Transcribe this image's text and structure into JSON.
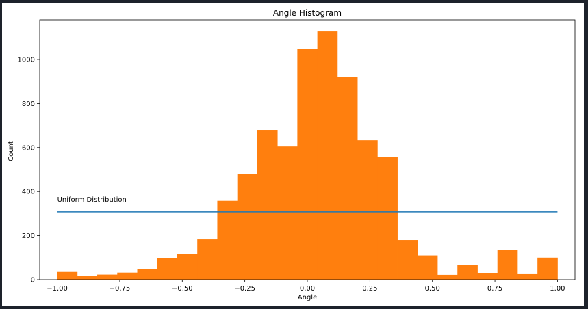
{
  "chart_data": {
    "type": "bar",
    "title": "Angle Histogram",
    "xlabel": "Angle",
    "ylabel": "Count",
    "xlim": [
      -1.07,
      1.07
    ],
    "ylim": [
      0,
      1180
    ],
    "xticks": [
      -1.0,
      -0.75,
      -0.5,
      -0.25,
      0.0,
      0.25,
      0.5,
      0.75,
      1.0
    ],
    "xtick_labels": [
      "−1.00",
      "−0.75",
      "−0.50",
      "−0.25",
      "0.00",
      "0.25",
      "0.50",
      "0.75",
      "1.00"
    ],
    "yticks": [
      0,
      200,
      400,
      600,
      800,
      1000
    ],
    "ytick_labels": [
      "0",
      "200",
      "400",
      "600",
      "800",
      "1000"
    ],
    "bin_edges": [
      -1.0,
      -0.92,
      -0.84,
      -0.76,
      -0.68,
      -0.6,
      -0.52,
      -0.44,
      -0.36,
      -0.28,
      -0.2,
      -0.12,
      -0.04,
      0.04,
      0.12,
      0.2,
      0.28,
      0.36,
      0.44,
      0.52,
      0.6,
      0.68,
      0.76,
      0.84,
      0.92,
      1.0
    ],
    "counts": [
      35,
      18,
      23,
      32,
      48,
      97,
      117,
      183,
      358,
      480,
      680,
      605,
      1047,
      1127,
      922,
      633,
      558,
      180,
      110,
      22,
      67,
      28,
      135,
      25,
      100
    ],
    "bar_color": "#ff7f0e",
    "uniform_line": {
      "label": "Uniform Distribution",
      "x": [
        -1.0,
        1.0
      ],
      "y": 308,
      "color": "#1f77b4"
    },
    "grid": false,
    "legend": "none"
  }
}
